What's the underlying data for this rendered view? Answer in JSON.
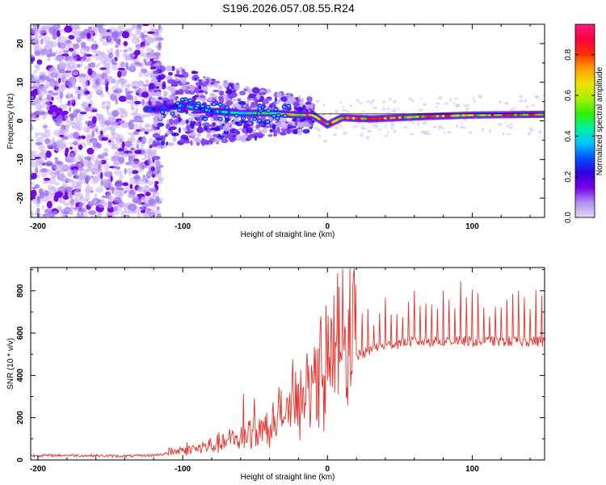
{
  "title": "S196.2026.057.08.55.R24",
  "chart_data": [
    {
      "type": "heatmap",
      "xlabel": "Height of straight line (km)",
      "ylabel": "Frequency (Hz)",
      "xlim": [
        -205,
        150
      ],
      "ylim": [
        -25,
        25
      ],
      "xticks": [
        -200,
        -100,
        0,
        100
      ],
      "yticks": [
        -20,
        -10,
        0,
        10,
        20
      ],
      "colorbar": {
        "label": "Normalized spectral amplitude",
        "range": [
          0,
          0.95
        ],
        "ticks": [
          "0.0",
          "0.2",
          "0.4",
          "0.6",
          "0.8"
        ],
        "tick_values": [
          0,
          0.2,
          0.4,
          0.6,
          0.8
        ],
        "colors": [
          "#e8d8f8",
          "#b090f0",
          "#7a00e8",
          "#3000e0",
          "#0050ff",
          "#00c8ff",
          "#00f0a0",
          "#30f000",
          "#a8f000",
          "#f0e000",
          "#ffa000",
          "#ff3000",
          "#ff0040",
          "#ff1a80"
        ]
      },
      "ridge": [
        {
          "x": -120,
          "y": 3
        },
        {
          "x": -100,
          "y": 4
        },
        {
          "x": -80,
          "y": 2.5
        },
        {
          "x": -60,
          "y": 2
        },
        {
          "x": -40,
          "y": 2
        },
        {
          "x": -20,
          "y": 1.5
        },
        {
          "x": -10,
          "y": 1.5
        },
        {
          "x": 0,
          "y": -1
        },
        {
          "x": 10,
          "y": 0.8
        },
        {
          "x": 30,
          "y": 0.5
        },
        {
          "x": 60,
          "y": 1
        },
        {
          "x": 100,
          "y": 1.5
        },
        {
          "x": 150,
          "y": 1.7
        }
      ]
    },
    {
      "type": "line",
      "xlabel": "Height of straight line (km)",
      "ylabel": "SNR (10 * v/v)",
      "xlim": [
        -205,
        150
      ],
      "ylim": [
        0,
        910
      ],
      "xticks": [
        -200,
        -100,
        0,
        100
      ],
      "yticks": [
        0,
        200,
        400,
        600,
        800
      ],
      "series": [
        {
          "name": "SNR",
          "color": "#e8302a",
          "x": [
            -205,
            -180,
            -160,
            -140,
            -120,
            -100,
            -90,
            -80,
            -70,
            -60,
            -50,
            -40,
            -30,
            -20,
            -10,
            0,
            10,
            20,
            30,
            40,
            50,
            60,
            70,
            80,
            90,
            100,
            110,
            120,
            130,
            140,
            150
          ],
          "y": [
            20,
            22,
            20,
            18,
            22,
            40,
            45,
            55,
            70,
            90,
            110,
            140,
            180,
            230,
            290,
            370,
            440,
            490,
            520,
            540,
            550,
            560,
            560,
            560,
            565,
            560,
            560,
            560,
            560,
            560,
            560
          ]
        }
      ]
    }
  ]
}
